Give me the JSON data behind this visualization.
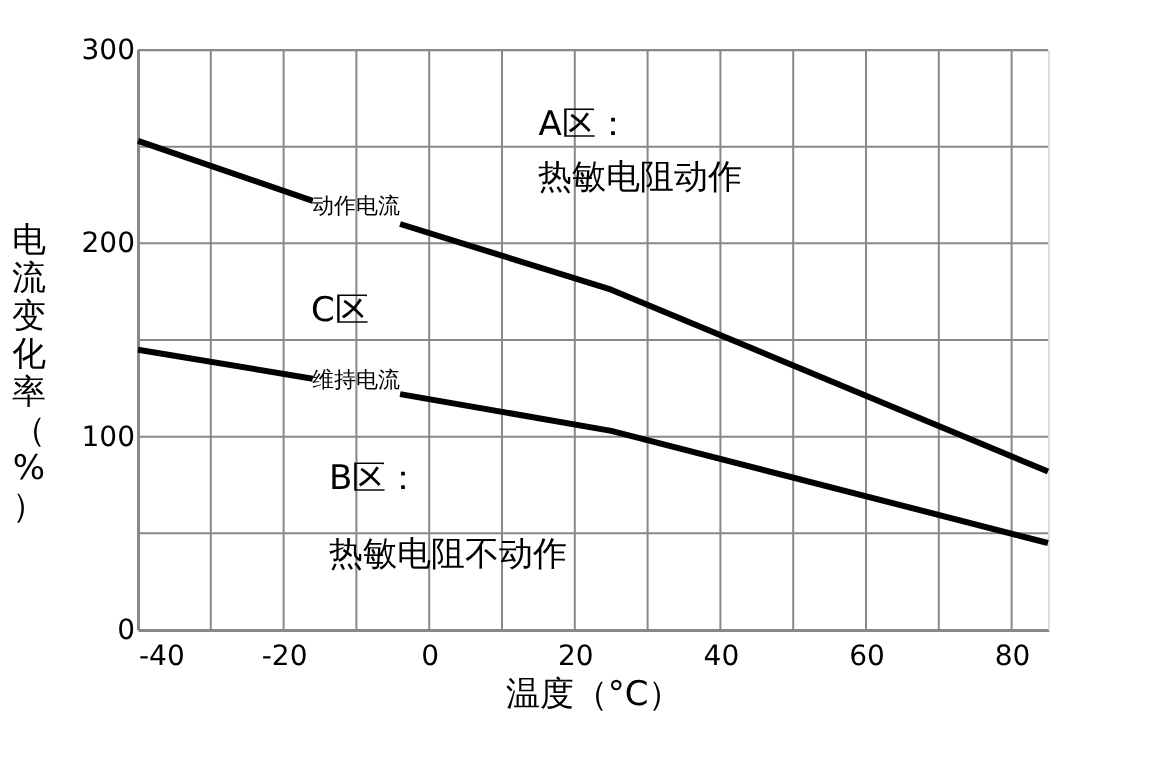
{
  "chart_data": {
    "type": "line",
    "xlabel": "温度（°C）",
    "ylabel": "电流变化率（%）",
    "x": [
      -40,
      -16,
      -10,
      -4,
      25,
      85
    ],
    "series": [
      {
        "color": "#000000",
        "values": [
          253,
          222,
          null,
          210,
          176,
          82
        ]
      },
      {
        "color": "#000000",
        "values": [
          145,
          130,
          null,
          122,
          103,
          45
        ]
      }
    ],
    "xlim": [
      -40,
      85
    ],
    "ylim": [
      0,
      300
    ],
    "xticks": [
      -40,
      {
        "value": -30,
        "label": null
      },
      -20,
      {
        "value": -10,
        "label": null
      },
      0,
      {
        "value": 10,
        "label": null
      },
      20,
      {
        "value": 30,
        "label": null
      },
      40,
      {
        "value": 50,
        "label": null
      },
      60,
      {
        "value": 70,
        "label": null
      },
      80
    ],
    "yticks": [
      0,
      {
        "value": 50,
        "label": null
      },
      100,
      {
        "value": 150,
        "label": null
      },
      200,
      {
        "value": 250,
        "label": null
      },
      300
    ],
    "grid": true,
    "marker": "none",
    "line_style": "solid",
    "annotations": [
      "动作电流",
      "维持电流",
      "A区：",
      "热敏电阻动作",
      "C区",
      "B区：",
      "热敏电阻不动作"
    ]
  }
}
